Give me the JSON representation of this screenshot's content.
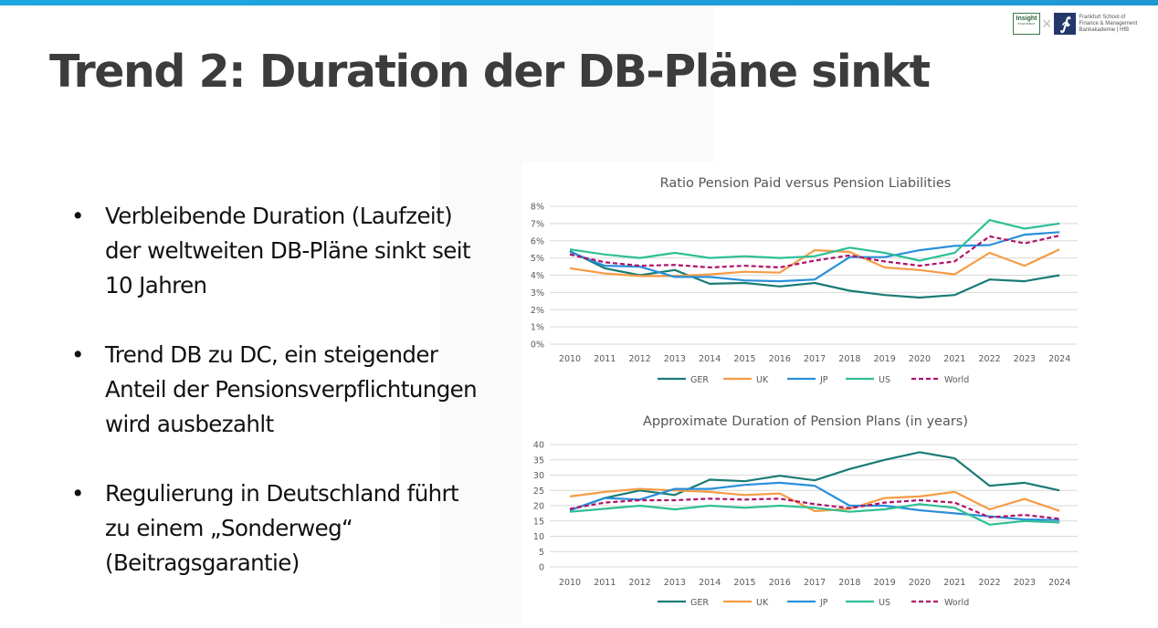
{
  "slide": {
    "title": "Trend 2: Duration der DB-Pläne sinkt",
    "logos": {
      "insight_label": "Insight",
      "insight_sub": "INVESTMENT",
      "separator": "×",
      "fs_symbol": "∱",
      "fs_line1": "Frankfurt School of",
      "fs_line2": "Finance & Management",
      "fs_line3": "Bankakademie | HfB"
    },
    "bullet_char": "•",
    "bullets": [
      "Verbleibende Duration (Laufzeit) der weltweiten DB-Pläne sinkt seit 10 Jahren",
      "Trend DB zu DC, ein steigender Anteil der Pensionsverpflichtungen wird ausbezahlt",
      "Regulierung in Deutschland führt zu einem „Sonderweg“ (Beitragsgarantie)"
    ]
  },
  "colors": {
    "topbar": "#1ea7e0",
    "GER": "#1a7b74",
    "UK": "#f59c45",
    "JP": "#2a8fd9",
    "US": "#2ebf95",
    "World": "#b0126a"
  },
  "chart_data": [
    {
      "type": "line",
      "title": "Ratio Pension Paid versus Pension Liabilities",
      "xlabel": "",
      "ylabel": "",
      "y_format": "percent",
      "ylim": [
        0,
        8
      ],
      "yticks": [
        0,
        1,
        2,
        3,
        4,
        5,
        6,
        7,
        8
      ],
      "ytick_labels": [
        "0%",
        "1%",
        "2%",
        "3%",
        "4%",
        "5%",
        "6%",
        "7%",
        "8%"
      ],
      "grid": true,
      "legend": "bottom",
      "categories": [
        "2010",
        "2011",
        "2012",
        "2013",
        "2014",
        "2015",
        "2016",
        "2017",
        "2018",
        "2019",
        "2020",
        "2021",
        "2022",
        "2023",
        "2024"
      ],
      "series": [
        {
          "name": "GER",
          "dashed": false,
          "values": [
            5.4,
            4.4,
            4.0,
            4.3,
            3.5,
            3.55,
            3.35,
            3.55,
            3.1,
            2.85,
            2.7,
            2.85,
            3.75,
            3.65,
            4.0
          ]
        },
        {
          "name": "UK",
          "dashed": false,
          "values": [
            4.4,
            4.1,
            3.95,
            3.95,
            4.05,
            4.2,
            4.15,
            5.45,
            5.35,
            4.45,
            4.3,
            4.05,
            5.3,
            4.55,
            5.5
          ]
        },
        {
          "name": "JP",
          "dashed": false,
          "values": [
            5.35,
            4.55,
            4.5,
            3.9,
            3.9,
            3.7,
            3.65,
            3.75,
            5.05,
            5.05,
            5.45,
            5.7,
            5.75,
            6.35,
            6.5
          ]
        },
        {
          "name": "US",
          "dashed": false,
          "values": [
            5.5,
            5.2,
            5.0,
            5.3,
            5.0,
            5.1,
            5.0,
            5.1,
            5.6,
            5.3,
            4.85,
            5.3,
            7.2,
            6.7,
            7.0
          ]
        },
        {
          "name": "World",
          "dashed": true,
          "values": [
            5.2,
            4.75,
            4.55,
            4.6,
            4.45,
            4.55,
            4.45,
            4.85,
            5.15,
            4.8,
            4.55,
            4.8,
            6.25,
            5.85,
            6.3
          ]
        }
      ]
    },
    {
      "type": "line",
      "title": "Approximate Duration of Pension Plans (in years)",
      "xlabel": "",
      "ylabel": "",
      "y_format": "number",
      "ylim": [
        0,
        40
      ],
      "yticks": [
        0,
        5,
        10,
        15,
        20,
        25,
        30,
        35,
        40
      ],
      "ytick_labels": [
        "0",
        "5",
        "10",
        "15",
        "20",
        "25",
        "30",
        "35",
        "40"
      ],
      "grid": true,
      "legend": "bottom",
      "categories": [
        "2010",
        "2011",
        "2012",
        "2013",
        "2014",
        "2015",
        "2016",
        "2017",
        "2018",
        "2019",
        "2020",
        "2021",
        "2022",
        "2023",
        "2024"
      ],
      "series": [
        {
          "name": "GER",
          "dashed": false,
          "values": [
            18.5,
            22.5,
            25,
            23.5,
            28.5,
            28,
            29.8,
            28.3,
            32,
            35,
            37.5,
            35.5,
            26.5,
            27.5,
            25
          ]
        },
        {
          "name": "UK",
          "dashed": false,
          "values": [
            23,
            24.5,
            25.5,
            25,
            24.5,
            23.5,
            24,
            18.2,
            19,
            22.5,
            23,
            24.5,
            18.8,
            22.2,
            18.3
          ]
        },
        {
          "name": "JP",
          "dashed": false,
          "values": [
            18.5,
            22.5,
            22,
            25.5,
            25.5,
            26.8,
            27.5,
            26.5,
            20,
            20,
            18.5,
            17.5,
            16.5,
            15.5,
            15.3
          ]
        },
        {
          "name": "US",
          "dashed": false,
          "values": [
            18,
            19,
            20,
            18.8,
            20,
            19.3,
            20,
            19.3,
            18,
            18.8,
            20.5,
            19.3,
            13.8,
            15,
            14.5
          ]
        },
        {
          "name": "World",
          "dashed": true,
          "values": [
            19,
            21,
            21.8,
            21.8,
            22.3,
            22,
            22.3,
            20.5,
            19.2,
            21,
            21.8,
            21,
            16.2,
            17,
            15.7
          ]
        }
      ]
    }
  ]
}
